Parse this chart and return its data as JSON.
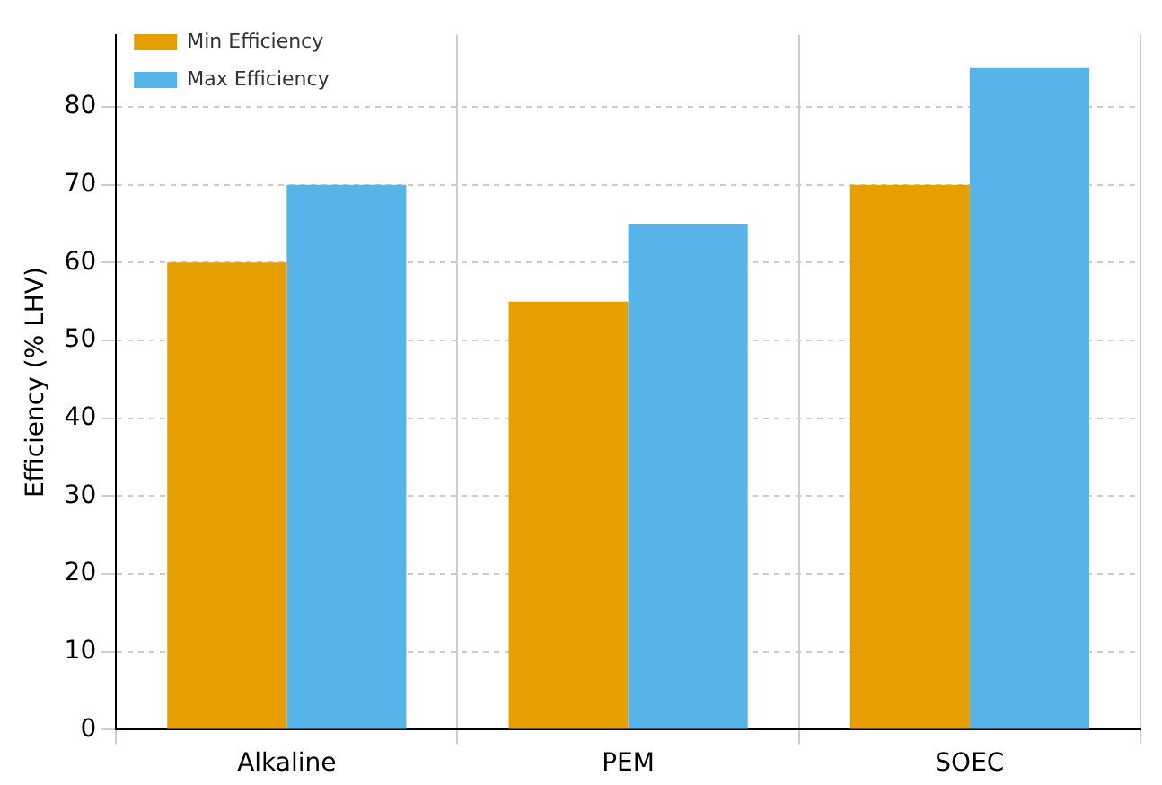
{
  "chart_data": {
    "type": "bar",
    "ylabel": "Efficiency (% LHV)",
    "categories": [
      "Alkaline",
      "PEM",
      "SOEC"
    ],
    "series": [
      {
        "name": "Min Efficiency",
        "color": "#e69f00",
        "values": [
          60,
          55,
          70
        ]
      },
      {
        "name": "Max Efficiency",
        "color": "#56b4e9",
        "values": [
          70,
          65,
          85
        ]
      }
    ],
    "ylim": [
      0,
      89.25
    ],
    "yticks": [
      0,
      10,
      20,
      30,
      40,
      50,
      60,
      70,
      80
    ],
    "grid": true,
    "legend": "top left"
  }
}
